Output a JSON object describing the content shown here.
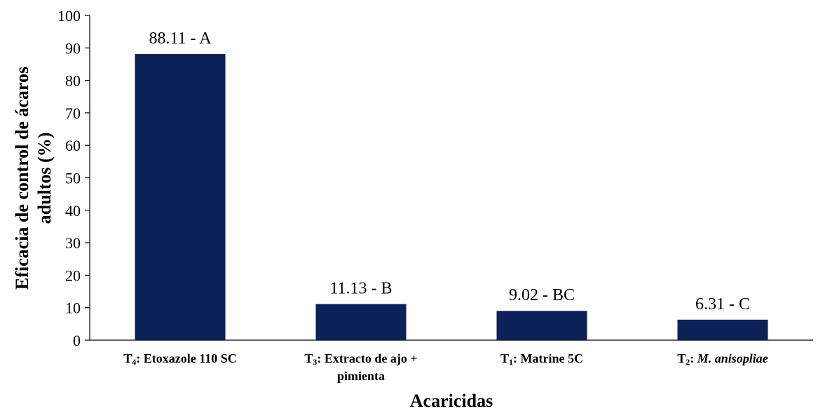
{
  "chart_data": {
    "type": "bar",
    "title": "",
    "xlabel": "Acaricidas",
    "ylabel_lines": [
      "Eficacia de control de ácaros",
      "adultos (%)"
    ],
    "ylim": [
      0,
      100
    ],
    "yticks": [
      0,
      10,
      20,
      30,
      40,
      50,
      60,
      70,
      80,
      90,
      100
    ],
    "grid": false,
    "legend": "none",
    "bar_color": "#0c2158",
    "categories": [
      {
        "lines": [
          [
            {
              "t": "T"
            },
            {
              "t": "4",
              "sub": true
            },
            {
              "t": ": Etoxazole 110 SC"
            }
          ]
        ]
      },
      {
        "lines": [
          [
            {
              "t": "T"
            },
            {
              "t": "3",
              "sub": true
            },
            {
              "t": ": Extracto de ajo +"
            }
          ],
          [
            {
              "t": "pimienta"
            }
          ]
        ]
      },
      {
        "lines": [
          [
            {
              "t": "T"
            },
            {
              "t": "1",
              "sub": true
            },
            {
              "t": ": Matrine 5C"
            }
          ]
        ]
      },
      {
        "lines": [
          [
            {
              "t": "T"
            },
            {
              "t": "2",
              "sub": true
            },
            {
              "t": ": "
            },
            {
              "t": "M. anisopliae",
              "italic": true
            }
          ]
        ]
      }
    ],
    "values": [
      88.11,
      11.13,
      9.02,
      6.31
    ],
    "data_labels": [
      "88.11 - A",
      "11.13 - B",
      "9.02 - BC",
      "6.31 - C"
    ]
  }
}
